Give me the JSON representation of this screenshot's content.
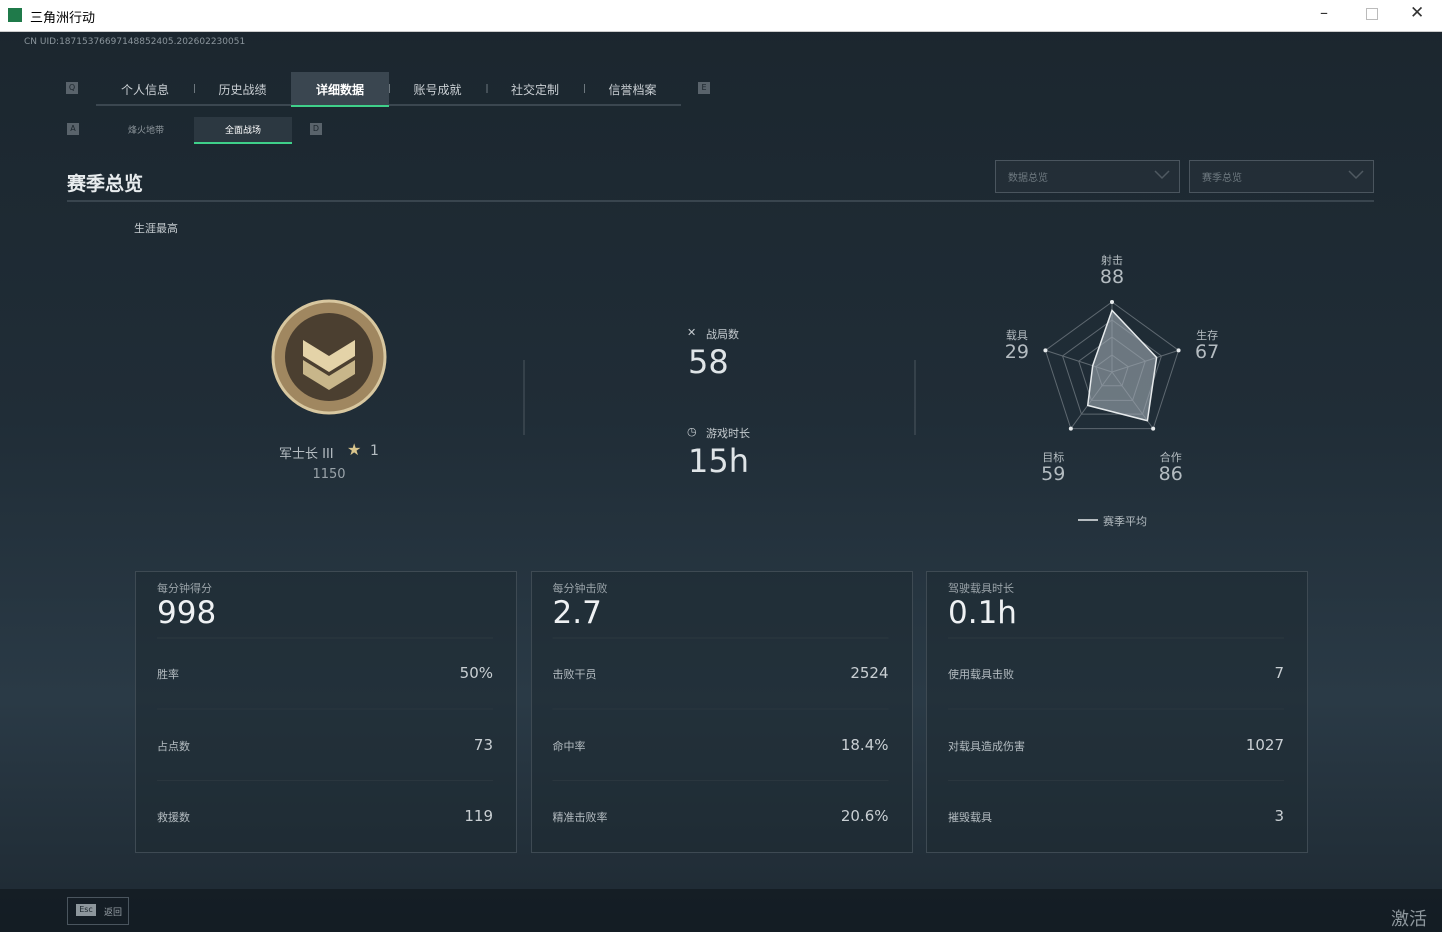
{
  "window": {
    "title": "三角洲行动"
  },
  "uid": "CN UID:18715376697148852405.202602230051",
  "tabs": {
    "prev_key": "Q",
    "next_key": "E",
    "items": [
      "个人信息",
      "历史战绩",
      "详细数据",
      "账号成就",
      "社交定制",
      "信誉档案"
    ],
    "active": 2
  },
  "subtabs": {
    "prev_key": "A",
    "next_key": "D",
    "items": [
      "烽火地带",
      "全面战场"
    ],
    "active": 1
  },
  "section": {
    "title": "赛季总览",
    "dropdowns": [
      "数据总览",
      "赛季总览"
    ]
  },
  "career": {
    "label": "生涯最高",
    "rank": "军士长 III",
    "stars": 1,
    "score": 1150
  },
  "stats": [
    {
      "label": "战局数",
      "value": 58
    },
    {
      "label": "游戏时长",
      "value": "15h"
    }
  ],
  "radar": {
    "axes": [
      {
        "label": "射击",
        "value": 88
      },
      {
        "label": "生存",
        "value": 67
      },
      {
        "label": "合作",
        "value": 86
      },
      {
        "label": "目标",
        "value": 59
      },
      {
        "label": "载具",
        "value": 29
      }
    ],
    "legend": "赛季平均"
  },
  "cards": [
    {
      "label": "每分钟得分",
      "value": 998,
      "rows": [
        {
          "label": "胜率",
          "value": "50%"
        },
        {
          "label": "占点数",
          "value": 73
        },
        {
          "label": "救援数",
          "value": 119
        }
      ]
    },
    {
      "label": "每分钟击败",
      "value": 2.7,
      "rows": [
        {
          "label": "击败干员",
          "value": 2524
        },
        {
          "label": "命中率",
          "value": "18.4%"
        },
        {
          "label": "精准击败率",
          "value": "20.6%"
        }
      ]
    },
    {
      "label": "驾驶载具时长",
      "value": "0.1h",
      "rows": [
        {
          "label": "使用载具击败",
          "value": 7
        },
        {
          "label": "对载具造成伤害",
          "value": 1027
        },
        {
          "label": "摧毁载具",
          "value": 3
        }
      ]
    }
  ],
  "footer": {
    "key": "Esc",
    "label": "返回"
  },
  "watermark": "激活"
}
